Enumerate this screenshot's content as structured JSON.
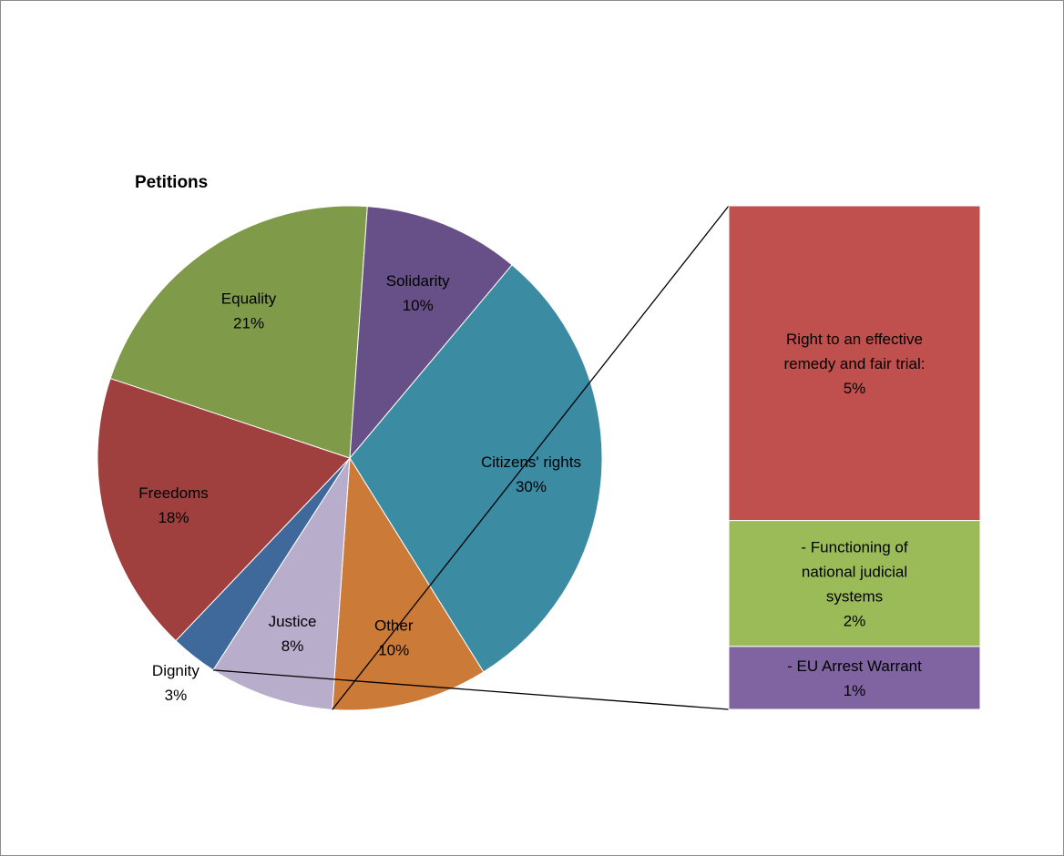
{
  "chart_data": {
    "type": "pie",
    "title": "Petitions",
    "slices": [
      {
        "label": "Citizens' rights",
        "value_label": "30%",
        "value": 30,
        "color": "#3b8ba3"
      },
      {
        "label": "Other",
        "value_label": "10%",
        "value": 10,
        "color": "#cc7a37"
      },
      {
        "label": "Justice",
        "value_label": "8%",
        "value": 8,
        "color": "#b8aecb"
      },
      {
        "label": "Dignity",
        "value_label": "3%",
        "value": 3,
        "color": "#3f699b"
      },
      {
        "label": "Freedoms",
        "value_label": "18%",
        "value": 18,
        "color": "#9f403e"
      },
      {
        "label": "Equality",
        "value_label": "21%",
        "value": 21,
        "color": "#7f9b49"
      },
      {
        "label": "Solidarity",
        "value_label": "10%",
        "value": 10,
        "color": "#674f87"
      }
    ],
    "breakdown": {
      "of": "Justice",
      "type": "stacked-bar",
      "segments": [
        {
          "lines": [
            "Right to an effective",
            "remedy and fair trial:"
          ],
          "value_label": "5%",
          "value": 5,
          "color": "#c0504e"
        },
        {
          "lines": [
            "- Functioning of",
            "national judicial",
            "systems"
          ],
          "value_label": "2%",
          "value": 2,
          "color": "#9bbb59"
        },
        {
          "lines": [
            "- EU Arrest Warrant"
          ],
          "value_label": "1%",
          "value": 1,
          "color": "#8064a2"
        }
      ]
    }
  }
}
